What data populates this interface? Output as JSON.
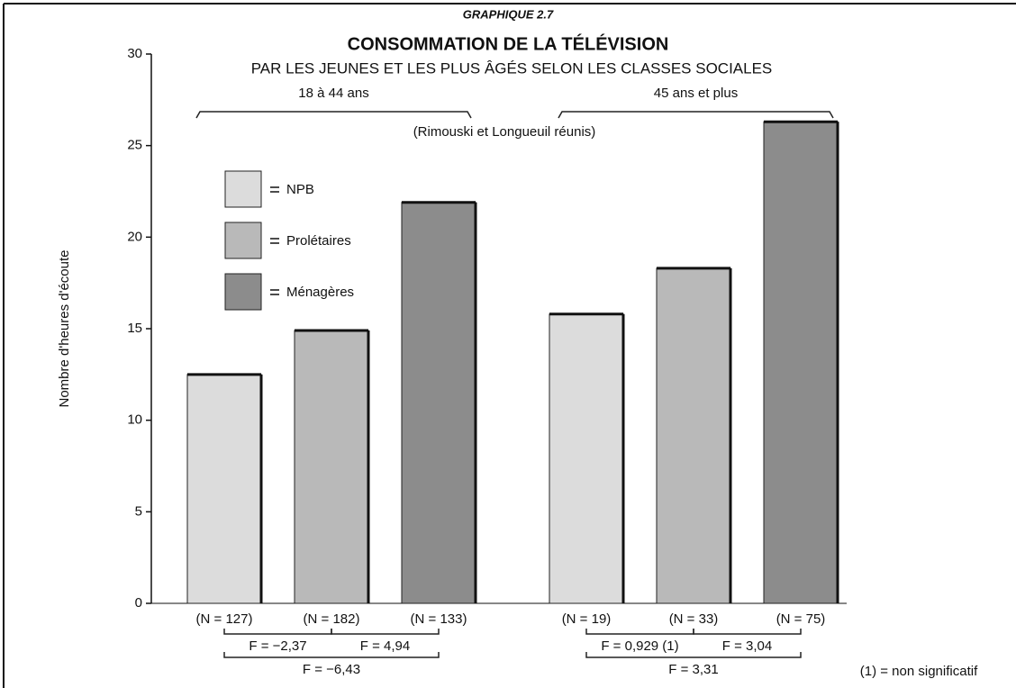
{
  "chart_data": {
    "type": "bar",
    "header": "GRAPHIQUE 2.7",
    "title": "CONSOMMATION DE LA TÉLÉVISION",
    "subtitle": "PAR LES JEUNES ET LES PLUS ÂGÉS SELON LES CLASSES SOCIALES",
    "note": "(Rimouski et Longueuil réunis)",
    "y_label": "Nombre d'heures d'écoute",
    "categories": [
      "18 à 44 ans",
      "45 ans et plus"
    ],
    "series": [
      {
        "name": "NPB",
        "color": "#dcdcdc",
        "values": [
          12.5,
          15.8
        ],
        "n_labels": [
          "(N = 127)",
          "(N = 19)"
        ]
      },
      {
        "name": "Prolétaires",
        "color": "#b9b9b9",
        "values": [
          14.9,
          18.3
        ],
        "n_labels": [
          "(N = 182)",
          "(N = 33)"
        ]
      },
      {
        "name": "Ménagères",
        "color": "#8c8c8c",
        "values": [
          21.9,
          26.3
        ],
        "n_labels": [
          "(N = 133)",
          "(N = 75)"
        ]
      }
    ],
    "ylim": [
      0,
      30
    ],
    "yticks": [
      0,
      5,
      10,
      15,
      20,
      25,
      30
    ],
    "f_tests": [
      [
        "F = −2,37",
        "F = 4,94",
        "F = −6,43"
      ],
      [
        "F = 0,929 (1)",
        "F = 3,04",
        "F = 3,31"
      ]
    ],
    "footnote": "(1) = non significatif"
  }
}
